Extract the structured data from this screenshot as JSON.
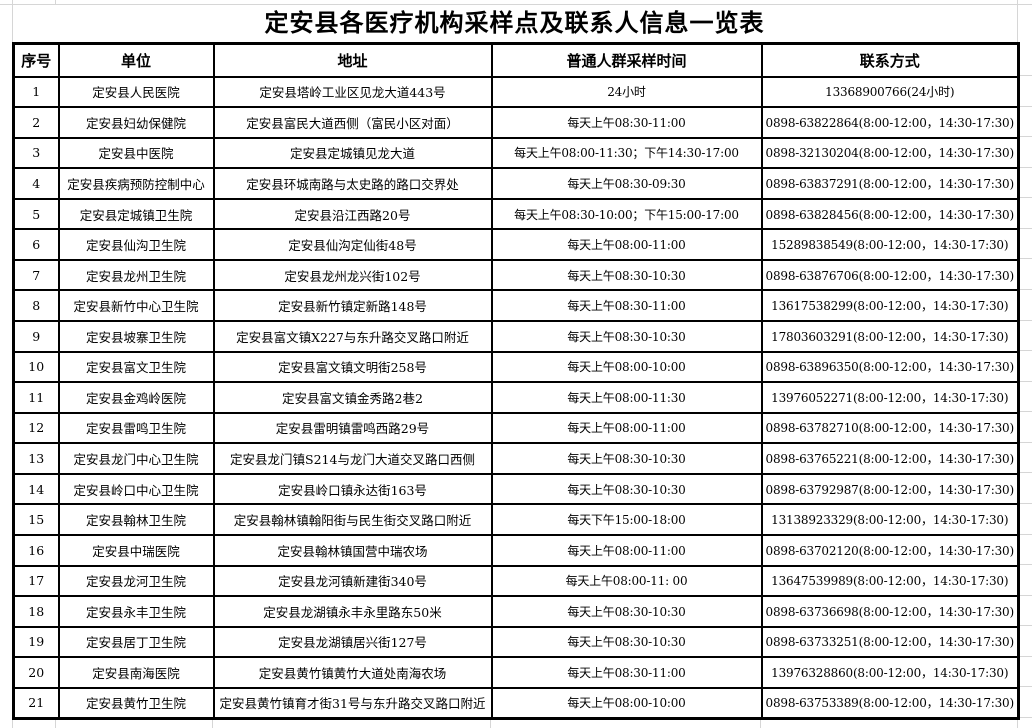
{
  "title": "定安县各医疗机构采样点及联系人信息一览表",
  "table": {
    "headers": [
      "序号",
      "单位",
      "地址",
      "普通人群采样时间",
      "联系方式"
    ],
    "rows": [
      [
        "1",
        "定安县人民医院",
        "定安县塔岭工业区见龙大道443号",
        "24小时",
        "13368900766(24小时)"
      ],
      [
        "2",
        "定安县妇幼保健院",
        "定安县富民大道西侧（富民小区对面）",
        "每天上午08:30-11:00",
        "0898-63822864(8:00-12:00，14:30-17:30)"
      ],
      [
        "3",
        "定安县中医院",
        "定安县定城镇见龙大道",
        "每天上午08:00-11:30；下午14:30-17:00",
        "0898-32130204(8:00-12:00，14:30-17:30)"
      ],
      [
        "4",
        "定安县疾病预防控制中心",
        "定安县环城南路与太史路的路口交界处",
        "每天上午08:30-09:30",
        "0898-63837291(8:00-12:00，14:30-17:30)"
      ],
      [
        "5",
        "定安县定城镇卫生院",
        "定安县沿江西路20号",
        "每天上午08:30-10:00；下午15:00-17:00",
        "0898-63828456(8:00-12:00，14:30-17:30)"
      ],
      [
        "6",
        "定安县仙沟卫生院",
        "定安县仙沟定仙街48号",
        "每天上午08:00-11:00",
        "15289838549(8:00-12:00，14:30-17:30)"
      ],
      [
        "7",
        "定安县龙州卫生院",
        "定安县龙州龙兴街102号",
        "每天上午08:30-10:30",
        "0898-63876706(8:00-12:00，14:30-17:30)"
      ],
      [
        "8",
        "定安县新竹中心卫生院",
        "定安县新竹镇定新路148号",
        "每天上午08:30-11:00",
        "13617538299(8:00-12:00，14:30-17:30)"
      ],
      [
        "9",
        "定安县坡寨卫生院",
        "定安县富文镇X227与东升路交叉路口附近",
        "每天上午08:30-10:30",
        "17803603291(8:00-12:00，14:30-17:30)"
      ],
      [
        "10",
        "定安县富文卫生院",
        "定安县富文镇文明街258号",
        "每天上午08:00-10:00",
        "0898-63896350(8:00-12:00，14:30-17:30)"
      ],
      [
        "11",
        "定安县金鸡岭医院",
        "定安县富文镇金秀路2巷2",
        "每天上午08:00-11:30",
        "13976052271(8:00-12:00，14:30-17:30)"
      ],
      [
        "12",
        "定安县雷鸣卫生院",
        "定安县雷明镇雷鸣西路29号",
        "每天上午08:00-11:00",
        "0898-63782710(8:00-12:00，14:30-17:30)"
      ],
      [
        "13",
        "定安县龙门中心卫生院",
        "定安县龙门镇S214与龙门大道交叉路口西侧",
        "每天上午08:30-10:30",
        "0898-63765221(8:00-12:00，14:30-17:30)"
      ],
      [
        "14",
        "定安县岭口中心卫生院",
        "定安县岭口镇永达街163号",
        "每天上午08:30-10:30",
        "0898-63792987(8:00-12:00，14:30-17:30)"
      ],
      [
        "15",
        "定安县翰林卫生院",
        "定安县翰林镇翰阳街与民生街交叉路口附近",
        "每天下午15:00-18:00",
        "13138923329(8:00-12:00，14:30-17:30)"
      ],
      [
        "16",
        "定安县中瑞医院",
        "定安县翰林镇国营中瑞农场",
        "每天上午08:00-11:00",
        "0898-63702120(8:00-12:00，14:30-17:30)"
      ],
      [
        "17",
        "定安县龙河卫生院",
        "定安县龙河镇新建街340号",
        "每天上午08:00-11: 00",
        "13647539989(8:00-12:00，14:30-17:30)"
      ],
      [
        "18",
        "定安县永丰卫生院",
        "定安县龙湖镇永丰永里路东50米",
        "每天上午08:30-10:30",
        "0898-63736698(8:00-12:00，14:30-17:30)"
      ],
      [
        "19",
        "定安县居丁卫生院",
        "定安县龙湖镇居兴街127号",
        "每天上午08:30-10:30",
        "0898-63733251(8:00-12:00，14:30-17:30)"
      ],
      [
        "20",
        "定安县南海医院",
        "定安县黄竹镇黄竹大道处南海农场",
        "每天上午08:30-11:00",
        "13976328860(8:00-12:00，14:30-17:30)"
      ],
      [
        "21",
        "定安县黄竹卫生院",
        "定安县黄竹镇育才街31号与东升路交叉路口附近",
        "每天上午08:00-10:00",
        "0898-63753389(8:00-12:00，14:30-17:30)"
      ]
    ]
  },
  "colors": {
    "border": "#000000",
    "faint_gridline": "#d6d6d6",
    "text": "#000000",
    "background": "#ffffff"
  }
}
